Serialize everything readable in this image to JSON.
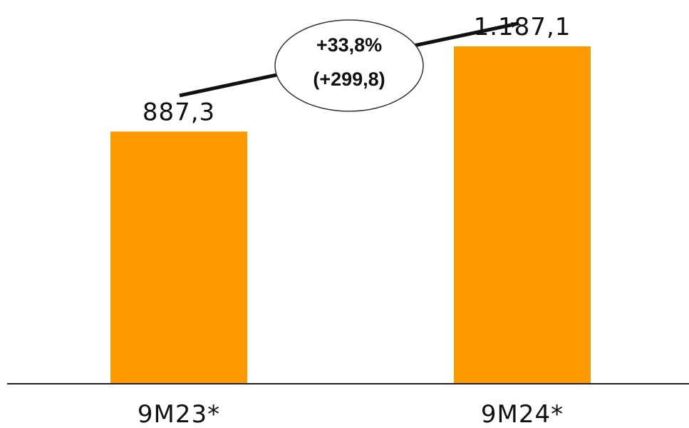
{
  "chart_data": {
    "type": "bar",
    "categories": [
      "9M23*",
      "9M24*"
    ],
    "values": [
      887.3,
      1187.1
    ],
    "value_labels": [
      "887,3",
      "1.187,1"
    ],
    "ylim": [
      0,
      1300
    ],
    "grid": false,
    "bar_color": "#FF9900",
    "annotation": {
      "percent_change": "+33,8%",
      "absolute_change": "(+299,8)"
    }
  }
}
